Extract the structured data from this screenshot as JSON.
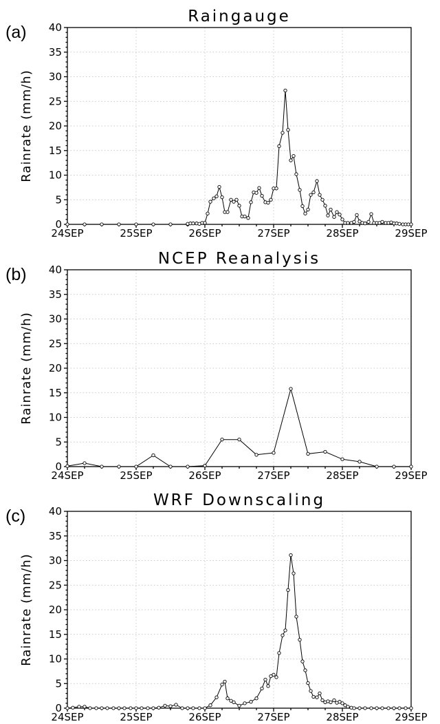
{
  "chart_data": [
    {
      "panel_label": "(a)",
      "type": "line",
      "title": "Raingauge",
      "ylabel": "Rainrate (mm/h)",
      "xlim": [
        24,
        29
      ],
      "ylim": [
        0,
        40
      ],
      "yticks": [
        0,
        5,
        10,
        15,
        20,
        25,
        30,
        35,
        40
      ],
      "xticks": [
        24,
        25,
        26,
        27,
        28,
        29
      ],
      "xtick_labels": [
        "24SEP",
        "25SEP",
        "26SEP",
        "27SEP",
        "28SEP",
        "29SEP"
      ],
      "grid": true,
      "x": [
        24.0,
        24.25,
        24.5,
        24.75,
        25.0,
        25.25,
        25.5,
        25.75,
        25.75,
        25.79,
        25.83,
        25.88,
        25.92,
        25.96,
        26.0,
        26.04,
        26.08,
        26.13,
        26.17,
        26.21,
        26.25,
        26.29,
        26.33,
        26.38,
        26.42,
        26.46,
        26.5,
        26.54,
        26.58,
        26.63,
        26.67,
        26.71,
        26.75,
        26.79,
        26.83,
        26.88,
        26.92,
        26.96,
        27.0,
        27.04,
        27.08,
        27.13,
        27.17,
        27.21,
        27.25,
        27.29,
        27.33,
        27.38,
        27.42,
        27.46,
        27.5,
        27.54,
        27.58,
        27.63,
        27.67,
        27.71,
        27.75,
        27.79,
        27.83,
        27.88,
        27.92,
        27.96,
        28.0,
        28.04,
        28.08,
        28.13,
        28.17,
        28.21,
        28.25,
        28.29,
        28.33,
        28.38,
        28.42,
        28.46,
        28.5,
        28.54,
        28.58,
        28.63,
        28.67,
        28.71,
        28.75,
        28.79,
        28.83,
        28.88,
        28.92,
        28.96,
        29.0
      ],
      "y": [
        0,
        0,
        0,
        0,
        0,
        0,
        0,
        0,
        0.1,
        0.2,
        0.2,
        0.2,
        0.1,
        0.3,
        0.3,
        2.2,
        4.6,
        5.3,
        5.7,
        7.6,
        5.5,
        2.5,
        2.5,
        5.0,
        4.6,
        5.0,
        3.8,
        1.6,
        1.6,
        1.3,
        4.5,
        6.5,
        6.4,
        7.4,
        5.8,
        4.5,
        4.4,
        5.0,
        7.3,
        7.3,
        15.9,
        18.6,
        27.2,
        19.2,
        13.0,
        13.9,
        10.2,
        7.0,
        3.7,
        2.2,
        3.0,
        6.0,
        6.5,
        8.8,
        6.0,
        5.0,
        3.8,
        1.8,
        3.0,
        1.5,
        2.5,
        2.0,
        1.0,
        0.3,
        0.3,
        0.3,
        0.5,
        1.9,
        0.6,
        0.3,
        0.2,
        0.5,
        2.1,
        0.3,
        0.3,
        0.3,
        0.5,
        0.3,
        0.3,
        0.4,
        0.2,
        0.2,
        0.1,
        0,
        0,
        0,
        0
      ]
    },
    {
      "panel_label": "(b)",
      "type": "line",
      "title": "NCEP Reanalysis",
      "ylabel": "Rainrate (mm/h)",
      "xlim": [
        24,
        29
      ],
      "ylim": [
        0,
        40
      ],
      "yticks": [
        0,
        5,
        10,
        15,
        20,
        25,
        30,
        35,
        40
      ],
      "xticks": [
        24,
        25,
        26,
        27,
        28,
        29
      ],
      "xtick_labels": [
        "24SEP",
        "25SEP",
        "26SEP",
        "27SEP",
        "28SEP",
        "29SEP"
      ],
      "grid": true,
      "x": [
        24.0,
        24.25,
        24.5,
        24.75,
        25.0,
        25.25,
        25.5,
        25.75,
        26.0,
        26.25,
        26.5,
        26.75,
        27.0,
        27.25,
        27.5,
        27.75,
        28.0,
        28.25,
        28.5,
        28.75,
        29.0
      ],
      "y": [
        0.1,
        0.7,
        0,
        0,
        0,
        2.3,
        0,
        0,
        0.2,
        5.5,
        5.5,
        2.4,
        2.8,
        15.8,
        2.6,
        3.0,
        1.5,
        1.0,
        0,
        0,
        0
      ]
    },
    {
      "panel_label": "(c)",
      "type": "line",
      "title": "WRF Downscaling",
      "ylabel": "Rainrate (mm/h)",
      "xlim": [
        24,
        29
      ],
      "ylim": [
        0,
        40
      ],
      "yticks": [
        0,
        5,
        10,
        15,
        20,
        25,
        30,
        35,
        40
      ],
      "xticks": [
        24,
        25,
        26,
        27,
        28,
        29
      ],
      "xtick_labels": [
        "24SEP",
        "25SEP",
        "26SEP",
        "27SEP",
        "28SEP",
        "29SEP"
      ],
      "grid": true,
      "x": [
        24.0,
        24.08,
        24.17,
        24.25,
        24.33,
        24.42,
        24.5,
        24.58,
        24.67,
        24.75,
        24.83,
        24.92,
        25.0,
        25.08,
        25.17,
        25.25,
        25.33,
        25.42,
        25.5,
        25.58,
        25.67,
        25.75,
        25.83,
        25.92,
        26.0,
        26.08,
        26.17,
        26.25,
        26.29,
        26.33,
        26.38,
        26.42,
        26.5,
        26.58,
        26.67,
        26.75,
        26.83,
        26.88,
        26.92,
        26.96,
        27.0,
        27.04,
        27.08,
        27.13,
        27.17,
        27.21,
        27.25,
        27.29,
        27.33,
        27.38,
        27.42,
        27.46,
        27.5,
        27.54,
        27.58,
        27.63,
        27.67,
        27.71,
        27.75,
        27.79,
        27.83,
        27.88,
        27.92,
        27.96,
        28.0,
        28.04,
        28.08,
        28.13,
        28.17,
        28.25,
        28.33,
        28.42,
        28.5,
        28.58,
        28.67,
        28.75,
        28.83,
        28.92,
        29.0
      ],
      "y": [
        0,
        0.1,
        0.3,
        0.3,
        0,
        0,
        0,
        0,
        0,
        0,
        0,
        0,
        0,
        0,
        0,
        0,
        0.1,
        0.5,
        0.4,
        0.7,
        0,
        0,
        0,
        0,
        0,
        0.6,
        2.2,
        4.8,
        5.4,
        2.0,
        1.5,
        1.2,
        0.5,
        1.0,
        1.3,
        2.0,
        4.0,
        5.8,
        4.5,
        6.5,
        6.8,
        6.3,
        11.2,
        14.8,
        15.8,
        24.0,
        31.1,
        27.4,
        18.6,
        13.9,
        9.5,
        7.7,
        5.1,
        3.5,
        2.3,
        2.2,
        3.0,
        1.6,
        1.2,
        1.4,
        1.2,
        1.6,
        1.1,
        1.3,
        1.0,
        0.6,
        0.3,
        0.1,
        0,
        0,
        0,
        0,
        0,
        0,
        0,
        0,
        0,
        0,
        0
      ]
    }
  ]
}
